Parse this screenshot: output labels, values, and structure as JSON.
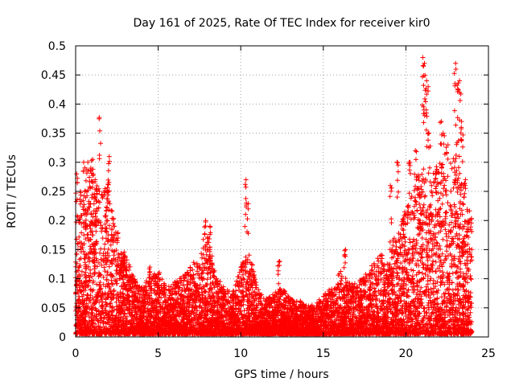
{
  "chart_data": {
    "type": "scatter",
    "title": "Day 161 of 2025, Rate Of TEC Index for receiver kir0",
    "xlabel": "GPS time / hours",
    "ylabel": "ROTI / TECUs",
    "xlim": [
      0,
      25
    ],
    "ylim": [
      0,
      0.5
    ],
    "x_ticks": [
      "0",
      "5",
      "10",
      "15",
      "20",
      "25"
    ],
    "y_ticks": [
      "0",
      "0.05",
      "0.1",
      "0.15",
      "0.2",
      "0.25",
      "0.3",
      "0.35",
      "0.4",
      "0.45",
      "0.5"
    ],
    "grid": true,
    "marker": "+",
    "colors": {
      "series": "#ff0000",
      "grid": "#a0a0a0",
      "axis": "#000000"
    },
    "envelope": {
      "x": [
        0,
        0.5,
        1,
        1.5,
        2,
        2.5,
        3,
        3.5,
        4,
        4.5,
        5,
        5.5,
        6,
        6.5,
        7,
        7.5,
        8,
        8.5,
        9,
        9.5,
        10,
        10.5,
        11,
        11.5,
        12,
        12.5,
        13,
        13.5,
        14,
        14.5,
        15,
        15.5,
        16,
        16.5,
        17,
        17.5,
        18,
        18.5,
        19,
        19.5,
        20,
        20.5,
        21,
        21.5,
        22,
        22.5,
        23,
        23.5,
        24
      ],
      "y": [
        0.2,
        0.25,
        0.28,
        0.25,
        0.27,
        0.16,
        0.14,
        0.1,
        0.08,
        0.1,
        0.11,
        0.08,
        0.09,
        0.1,
        0.12,
        0.13,
        0.17,
        0.1,
        0.08,
        0.07,
        0.12,
        0.15,
        0.08,
        0.06,
        0.07,
        0.08,
        0.06,
        0.06,
        0.05,
        0.05,
        0.07,
        0.08,
        0.11,
        0.09,
        0.09,
        0.1,
        0.12,
        0.14,
        0.16,
        0.17,
        0.22,
        0.25,
        0.3,
        0.27,
        0.3,
        0.28,
        0.32,
        0.25,
        0.2
      ]
    },
    "spikes": [
      {
        "x": 0.05,
        "y": 0.28
      },
      {
        "x": 0.3,
        "y": 0.25
      },
      {
        "x": 0.5,
        "y": 0.3
      },
      {
        "x": 0.7,
        "y": 0.3
      },
      {
        "x": 0.9,
        "y": 0.29
      },
      {
        "x": 1.0,
        "y": 0.305
      },
      {
        "x": 1.25,
        "y": 0.27
      },
      {
        "x": 1.45,
        "y": 0.377
      },
      {
        "x": 1.9,
        "y": 0.25
      },
      {
        "x": 2.0,
        "y": 0.31
      },
      {
        "x": 2.5,
        "y": 0.18
      },
      {
        "x": 4.5,
        "y": 0.12
      },
      {
        "x": 7.8,
        "y": 0.2
      },
      {
        "x": 8.1,
        "y": 0.19
      },
      {
        "x": 10.3,
        "y": 0.27
      },
      {
        "x": 10.4,
        "y": 0.23
      },
      {
        "x": 12.3,
        "y": 0.13
      },
      {
        "x": 16.3,
        "y": 0.15
      },
      {
        "x": 19.1,
        "y": 0.26
      },
      {
        "x": 19.5,
        "y": 0.3
      },
      {
        "x": 20.2,
        "y": 0.3
      },
      {
        "x": 20.6,
        "y": 0.32
      },
      {
        "x": 21.0,
        "y": 0.48
      },
      {
        "x": 21.1,
        "y": 0.47
      },
      {
        "x": 21.2,
        "y": 0.44
      },
      {
        "x": 21.3,
        "y": 0.43
      },
      {
        "x": 21.4,
        "y": 0.35
      },
      {
        "x": 22.1,
        "y": 0.37
      },
      {
        "x": 22.3,
        "y": 0.35
      },
      {
        "x": 22.5,
        "y": 0.33
      },
      {
        "x": 23.0,
        "y": 0.47
      },
      {
        "x": 23.1,
        "y": 0.46
      },
      {
        "x": 23.2,
        "y": 0.44
      },
      {
        "x": 23.3,
        "y": 0.42
      },
      {
        "x": 23.4,
        "y": 0.37
      },
      {
        "x": 23.6,
        "y": 0.27
      },
      {
        "x": 23.8,
        "y": 0.2
      }
    ]
  }
}
